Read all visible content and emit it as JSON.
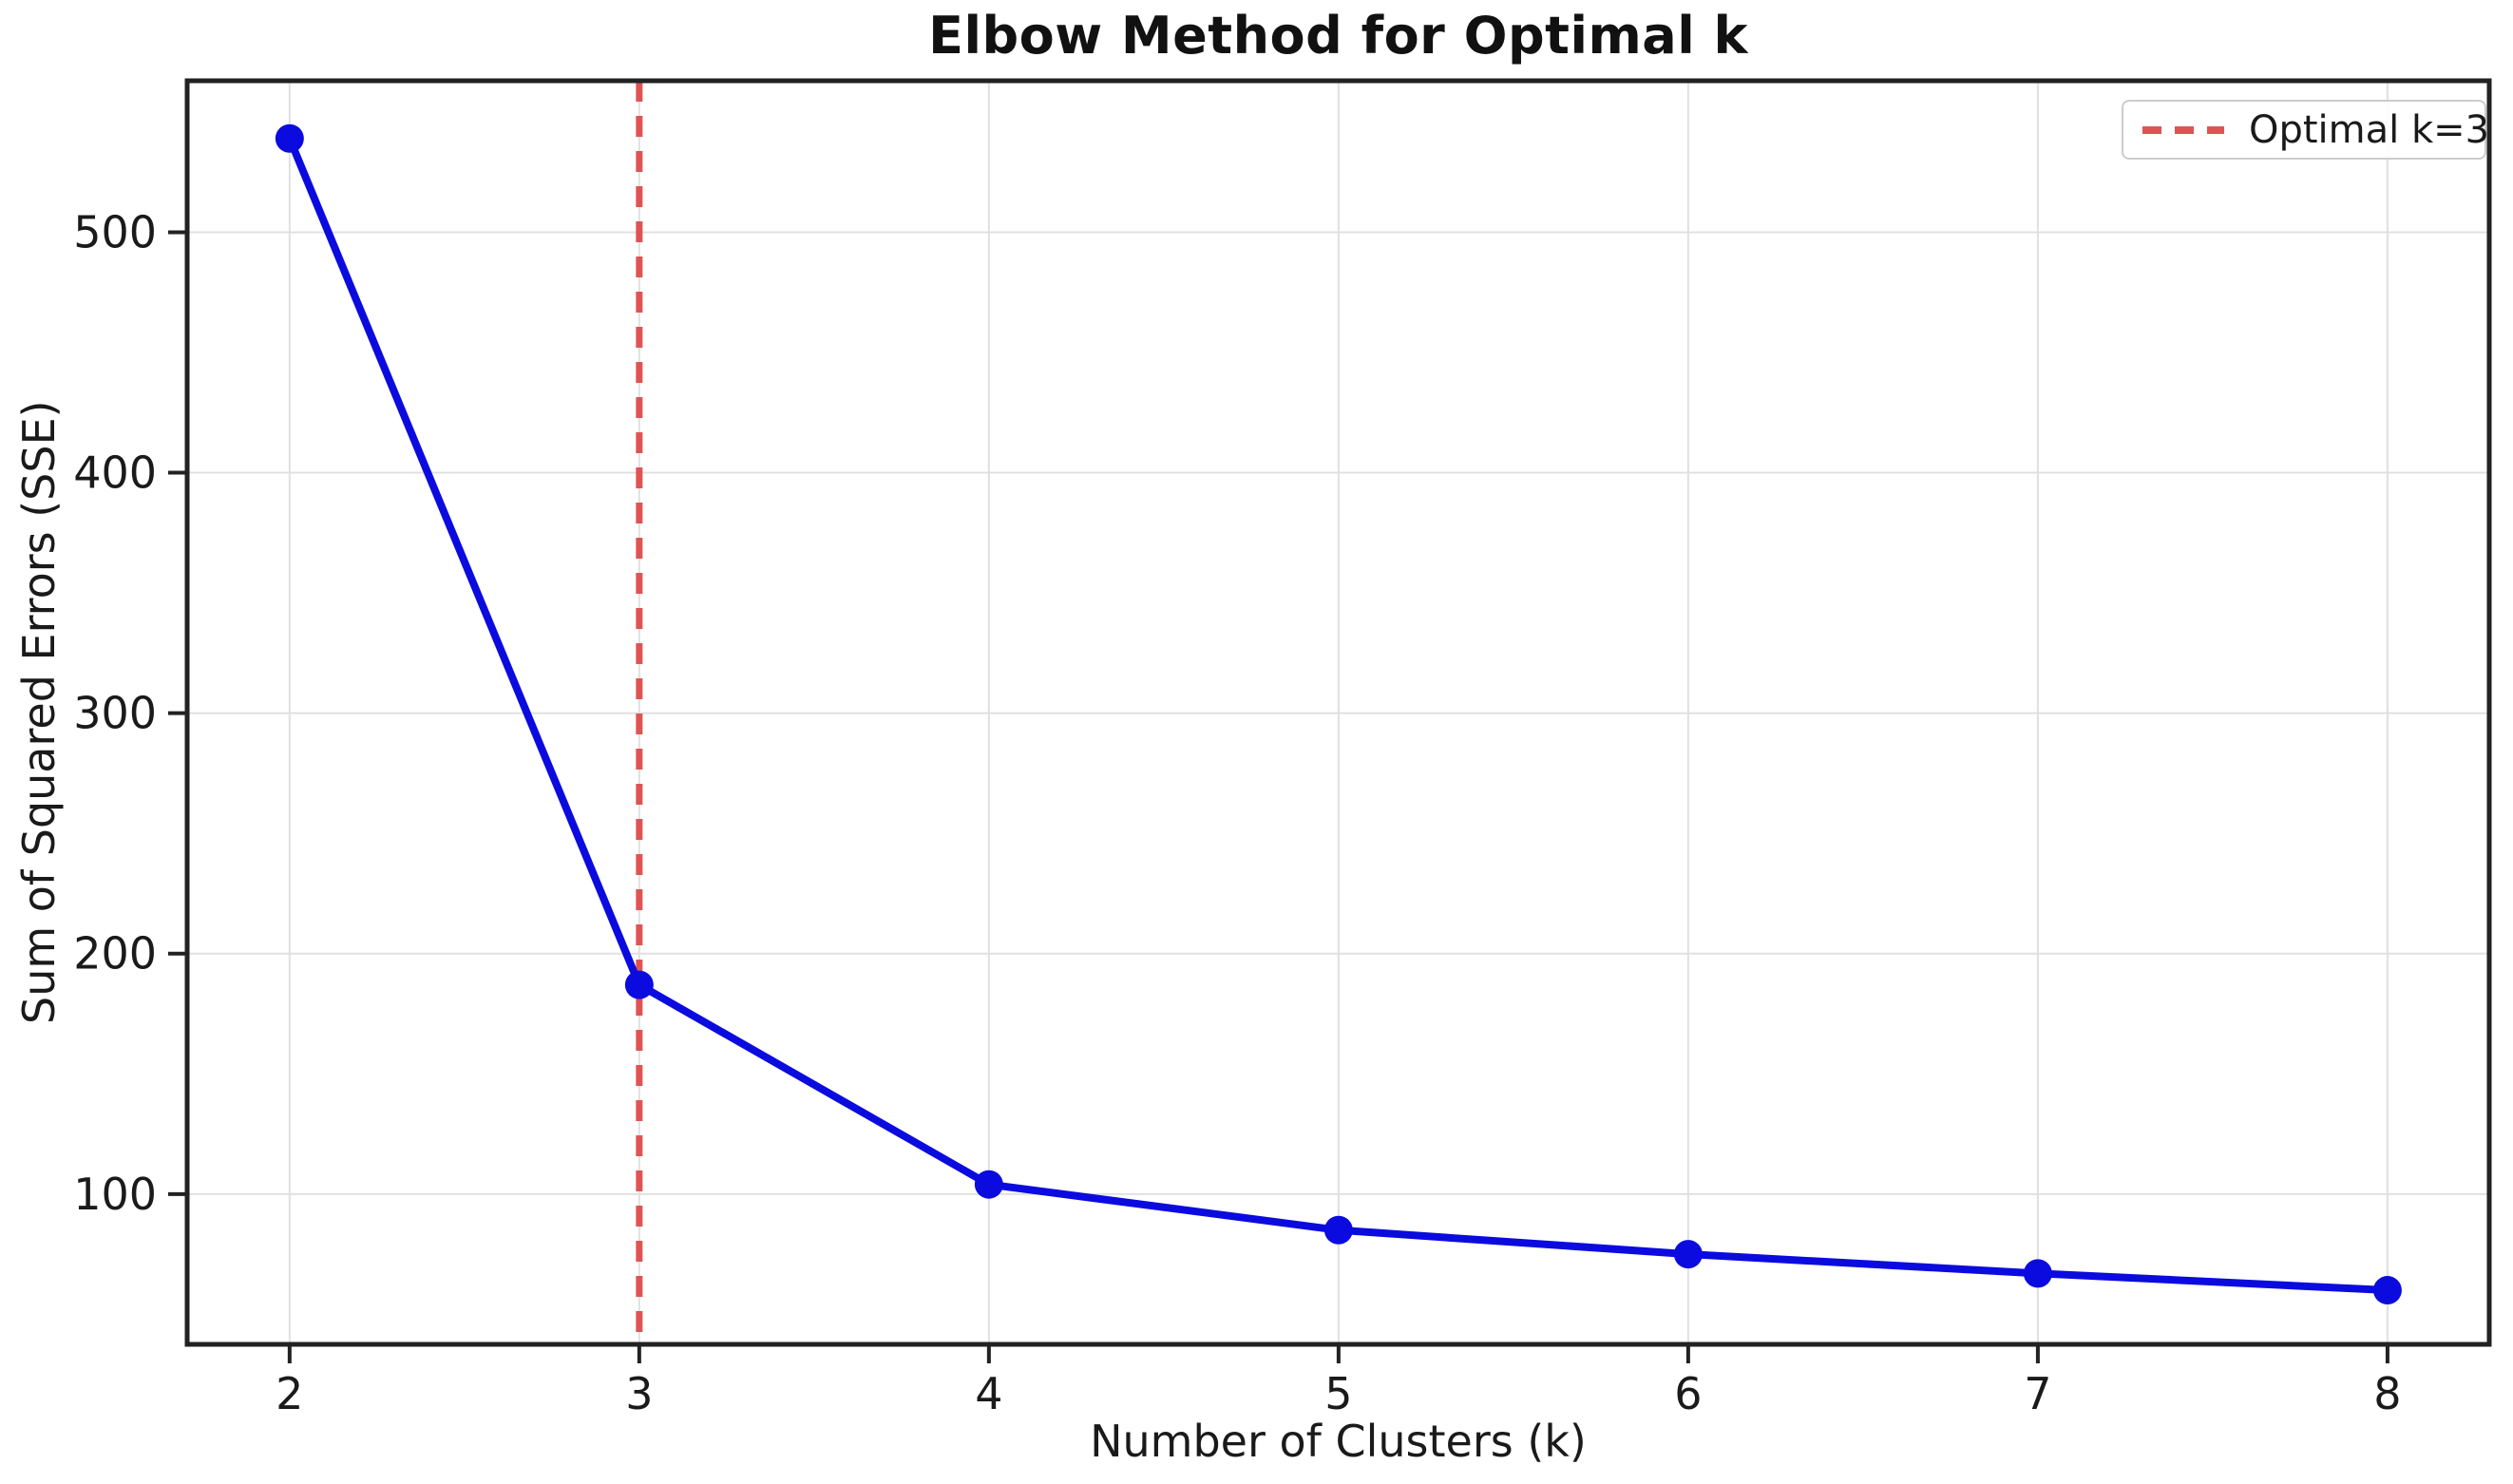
{
  "chart_data": {
    "type": "line",
    "title": "Elbow Method for Optimal k",
    "xlabel": "Number of Clusters (k)",
    "ylabel": "Sum of Squared Errors (SSE)",
    "series": [
      {
        "name": "SSE",
        "x": [
          2,
          3,
          4,
          5,
          6,
          7,
          8
        ],
        "y": [
          539,
          187,
          104,
          85,
          75,
          67,
          60
        ],
        "color": "#0b0bdf",
        "marker": "circle",
        "line_style": "solid"
      }
    ],
    "vline": {
      "x": 3,
      "color": "#e05353",
      "style": "dashed",
      "legend_label": "Optimal k=3"
    },
    "x_ticks": [
      "2",
      "3",
      "4",
      "5",
      "6",
      "7",
      "8"
    ],
    "x_tick_values": [
      2,
      3,
      4,
      5,
      6,
      7,
      8
    ],
    "y_ticks": [
      "100",
      "200",
      "300",
      "400",
      "500"
    ],
    "y_tick_values": [
      100,
      200,
      300,
      400,
      500
    ],
    "xlim": [
      1.707,
      8.291
    ],
    "ylim": [
      37.5,
      563
    ],
    "grid": true,
    "legend_position": "upper right",
    "colors": {
      "grid": "#e0e0e0",
      "spine": "#222222",
      "tick": "#222222",
      "text": "#1a1a1a",
      "background": "#ffffff"
    }
  }
}
